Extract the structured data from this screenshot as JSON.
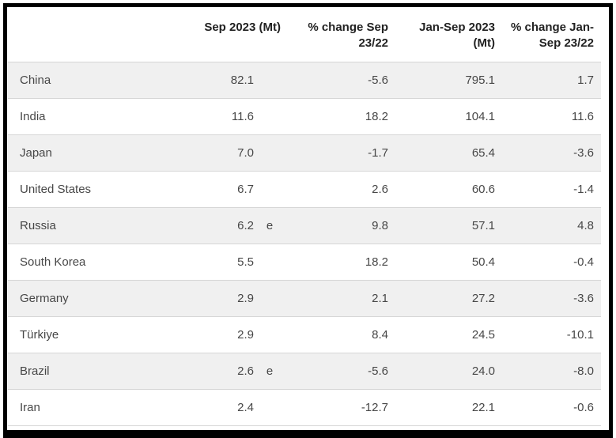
{
  "colors": {
    "frame_border": "#000000",
    "row_stripe": "#f0f0f0",
    "row_separator": "#d6d6d6",
    "header_text": "#222222",
    "body_text": "#474747"
  },
  "chart_data": {
    "type": "table",
    "columns": [
      "",
      "Sep 2023 (Mt)",
      "% change Sep 23/22",
      "Jan-Sep 2023 (Mt)",
      "% change Jan-Sep 23/22"
    ],
    "header_lines": [
      [
        "",
        ""
      ],
      [
        "Sep 2023 (Mt)",
        ""
      ],
      [
        "% change Sep",
        "23/22"
      ],
      [
        "Jan-Sep 2023",
        "(Mt)"
      ],
      [
        "% change Jan-",
        "Sep 23/22"
      ]
    ],
    "rows": [
      {
        "country": "China",
        "sep_2023_mt": "82.1",
        "estimate_marker": "",
        "pct_change_sep": "-5.6",
        "jan_sep_2023_mt": "795.1",
        "pct_change_jan_sep": "1.7"
      },
      {
        "country": "India",
        "sep_2023_mt": "11.6",
        "estimate_marker": "",
        "pct_change_sep": "18.2",
        "jan_sep_2023_mt": "104.1",
        "pct_change_jan_sep": "11.6"
      },
      {
        "country": "Japan",
        "sep_2023_mt": "7.0",
        "estimate_marker": "",
        "pct_change_sep": "-1.7",
        "jan_sep_2023_mt": "65.4",
        "pct_change_jan_sep": "-3.6"
      },
      {
        "country": "United States",
        "sep_2023_mt": "6.7",
        "estimate_marker": "",
        "pct_change_sep": "2.6",
        "jan_sep_2023_mt": "60.6",
        "pct_change_jan_sep": "-1.4"
      },
      {
        "country": "Russia",
        "sep_2023_mt": "6.2",
        "estimate_marker": "e",
        "pct_change_sep": "9.8",
        "jan_sep_2023_mt": "57.1",
        "pct_change_jan_sep": "4.8"
      },
      {
        "country": "South Korea",
        "sep_2023_mt": "5.5",
        "estimate_marker": "",
        "pct_change_sep": "18.2",
        "jan_sep_2023_mt": "50.4",
        "pct_change_jan_sep": "-0.4"
      },
      {
        "country": "Germany",
        "sep_2023_mt": "2.9",
        "estimate_marker": "",
        "pct_change_sep": "2.1",
        "jan_sep_2023_mt": "27.2",
        "pct_change_jan_sep": "-3.6"
      },
      {
        "country": "Türkiye",
        "sep_2023_mt": "2.9",
        "estimate_marker": "",
        "pct_change_sep": "8.4",
        "jan_sep_2023_mt": "24.5",
        "pct_change_jan_sep": "-10.1"
      },
      {
        "country": "Brazil",
        "sep_2023_mt": "2.6",
        "estimate_marker": "e",
        "pct_change_sep": "-5.6",
        "jan_sep_2023_mt": "24.0",
        "pct_change_jan_sep": "-8.0"
      },
      {
        "country": "Iran",
        "sep_2023_mt": "2.4",
        "estimate_marker": "",
        "pct_change_sep": "-12.7",
        "jan_sep_2023_mt": "22.1",
        "pct_change_jan_sep": "-0.6"
      }
    ]
  }
}
